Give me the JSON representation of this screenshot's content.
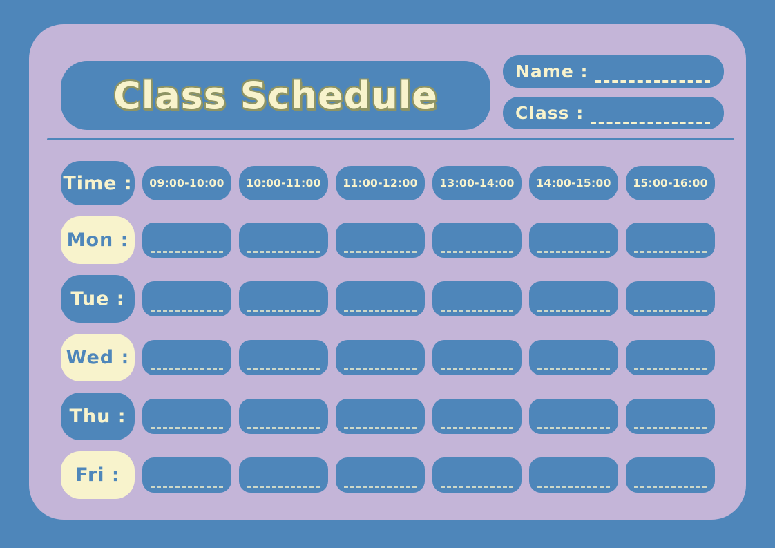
{
  "colors": {
    "background_blue": "#4E86BA",
    "panel_lavender": "#C4B5D8",
    "box_blue": "#4E86BA",
    "cream": "#F8F3CC",
    "title_outline_olive": "#8E9464"
  },
  "header": {
    "title": "Class Schedule",
    "name_label": "Name :",
    "name_value": "",
    "class_label": "Class :",
    "class_value": ""
  },
  "schedule": {
    "time_label": "Time :",
    "time_slots": [
      "09:00-10:00",
      "10:00-11:00",
      "11:00-12:00",
      "13:00-14:00",
      "14:00-15:00",
      "15:00-16:00"
    ],
    "days": [
      {
        "label": "Mon :",
        "variant": "cream",
        "entries": [
          "",
          "",
          "",
          "",
          "",
          ""
        ]
      },
      {
        "label": "Tue :",
        "variant": "blue",
        "entries": [
          "",
          "",
          "",
          "",
          "",
          ""
        ]
      },
      {
        "label": "Wed :",
        "variant": "cream",
        "entries": [
          "",
          "",
          "",
          "",
          "",
          ""
        ]
      },
      {
        "label": "Thu :",
        "variant": "blue",
        "entries": [
          "",
          "",
          "",
          "",
          "",
          ""
        ]
      },
      {
        "label": "Fri :",
        "variant": "cream",
        "entries": [
          "",
          "",
          "",
          "",
          "",
          ""
        ]
      }
    ]
  }
}
